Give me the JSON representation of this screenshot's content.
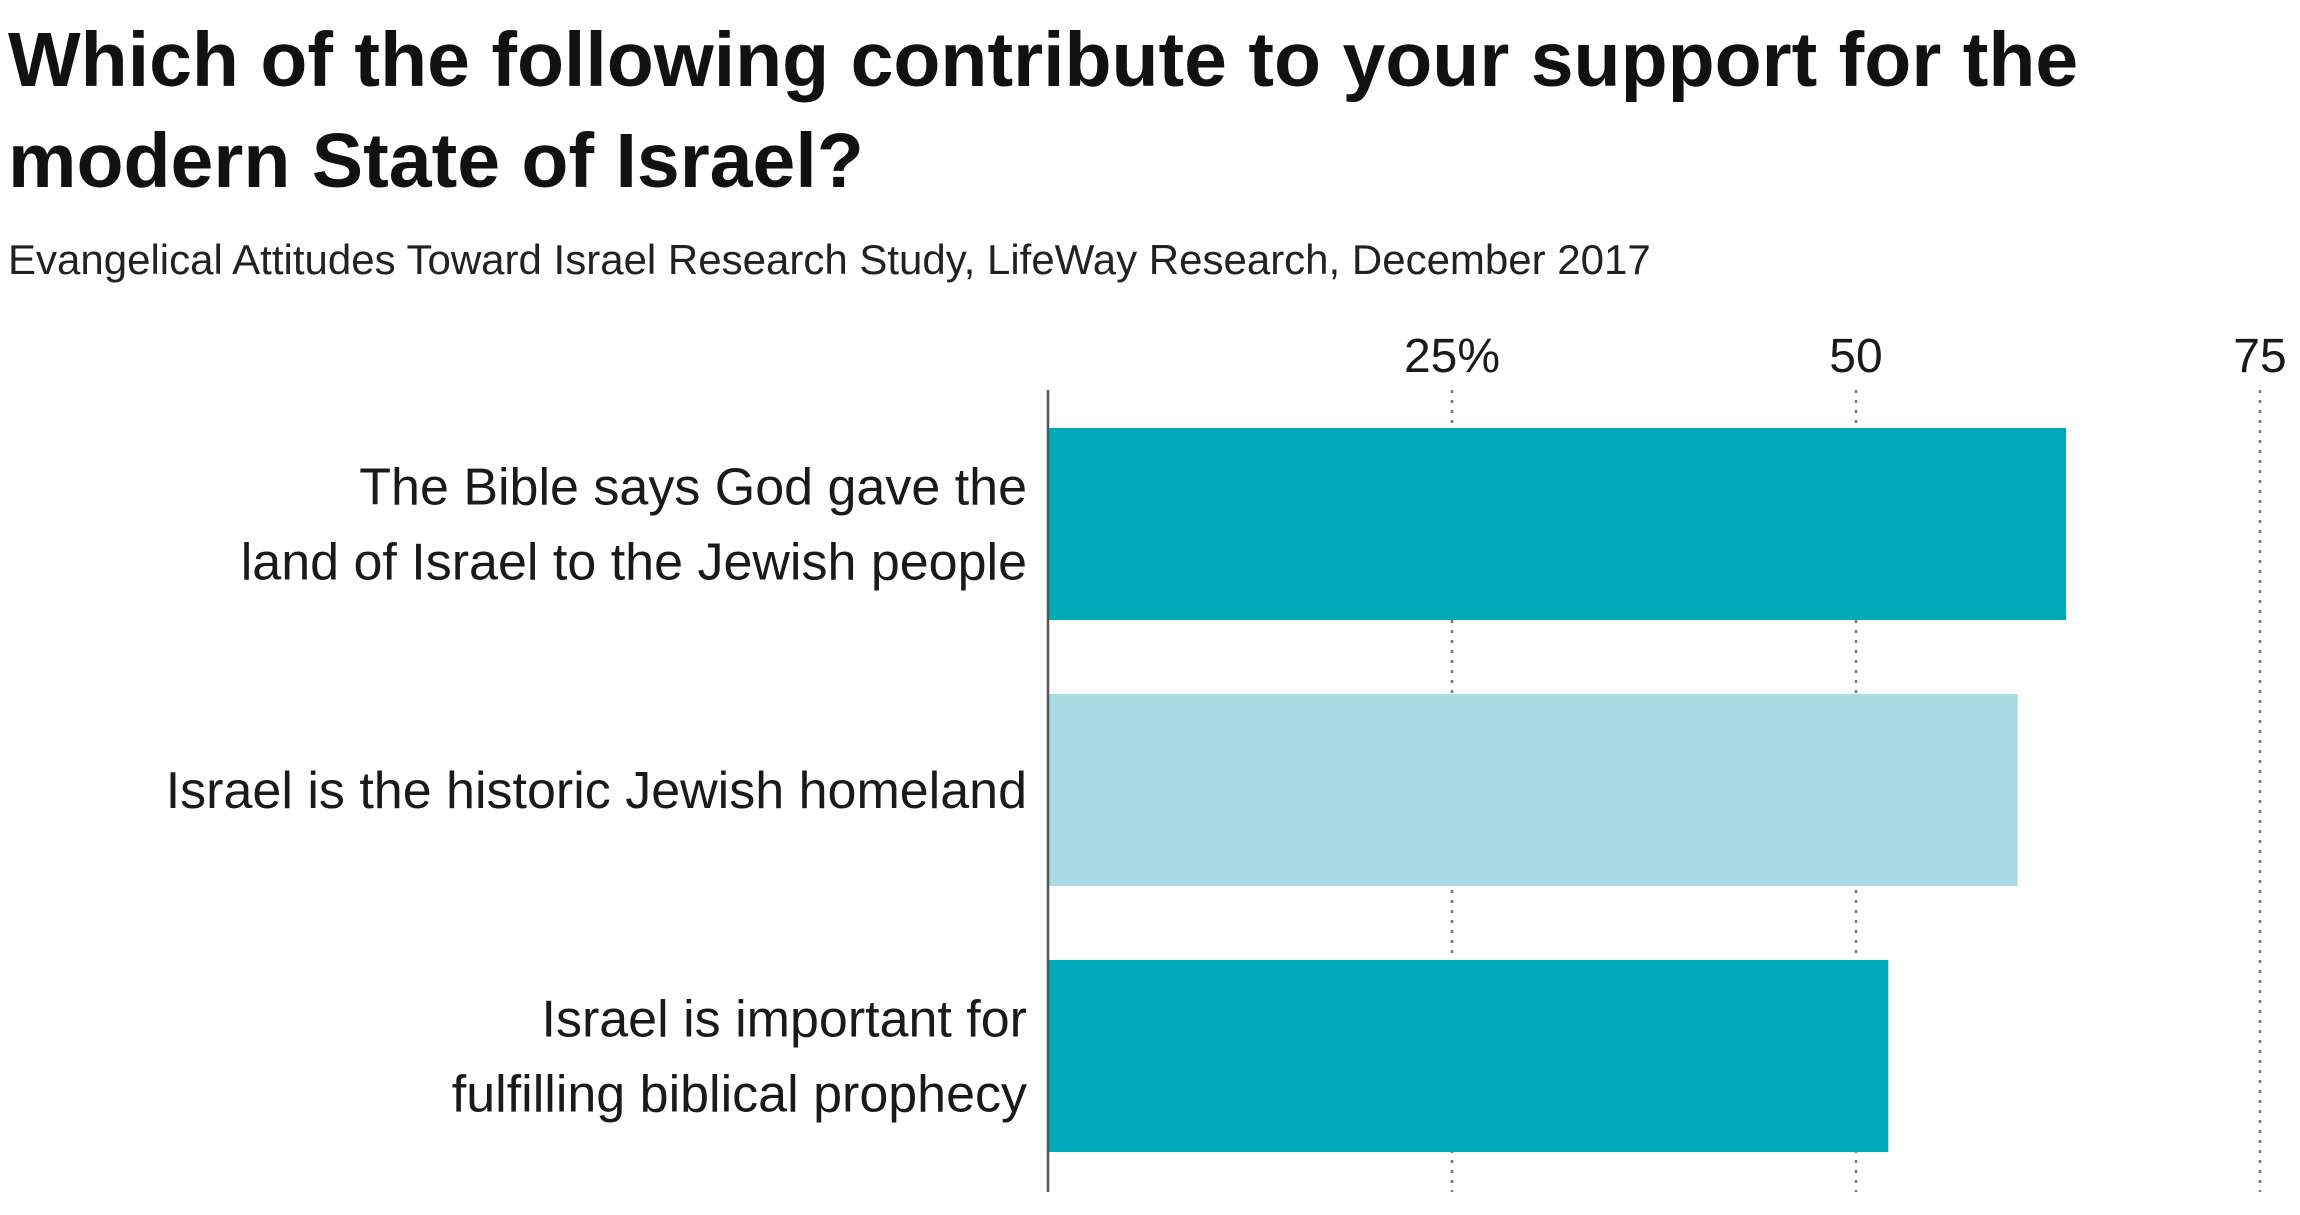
{
  "colors": {
    "dark_teal": "#00A9B7",
    "light_teal": "#A8DBE2",
    "axis": "#555555",
    "grid": "#777777"
  },
  "chart_data": {
    "type": "bar",
    "orientation": "horizontal",
    "title": "Which of the following contribute to your support for the modern State of Israel?",
    "subtitle": "Evangelical Attitudes Toward Israel Research Study, LifeWay Research, December 2017",
    "categories": [
      "The Bible says God gave the land of Israel to the Jewish people",
      "Israel is the historic Jewish homeland",
      "Israel is important for fulfilling biblical prophecy"
    ],
    "category_lines": [
      [
        "The Bible says God gave the",
        "land of Israel to the Jewish people"
      ],
      [
        "Israel is the historic Jewish homeland"
      ],
      [
        "Israel is important for",
        "fulfilling biblical prophecy"
      ]
    ],
    "values": [
      63,
      60,
      52
    ],
    "bar_colors": [
      "#00A9B7",
      "#A8DBE2",
      "#00A9B7"
    ],
    "xlim": [
      0,
      75
    ],
    "ticks": [
      25,
      50,
      75
    ],
    "tick_labels": [
      "25%",
      "50",
      "75"
    ],
    "grid": "vertical-dotted",
    "legend": "none",
    "xlabel": "",
    "ylabel": ""
  }
}
